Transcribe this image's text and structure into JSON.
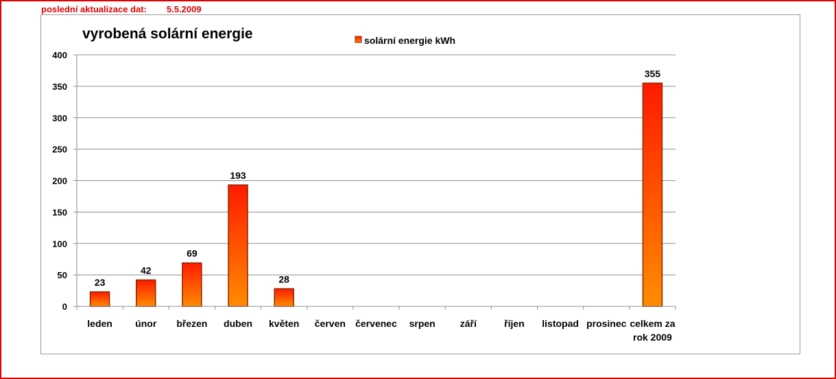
{
  "header": {
    "update_label": "poslední aktualizace dat:",
    "update_date": "5.5.2009"
  },
  "colors": {
    "accent": "#e00000",
    "bar_top": "#ff1a00",
    "bar_bottom": "#ff8c00",
    "bar_edge": "#8b2500"
  },
  "chart_data": {
    "type": "bar",
    "title": "vyrobená solární energie",
    "legend": [
      "solární energie kWh"
    ],
    "legend_position": "top",
    "categories": [
      "leden",
      "únor",
      "březen",
      "duben",
      "květen",
      "červen",
      "červenec",
      "srpen",
      "září",
      "říjen",
      "listopad",
      "prosinec",
      "celkem za rok 2009"
    ],
    "series": [
      {
        "name": "solární energie kWh",
        "values": [
          23,
          42,
          69,
          193,
          28,
          null,
          null,
          null,
          null,
          null,
          null,
          null,
          355
        ]
      }
    ],
    "data_labels": [
      "23",
      "42",
      "69",
      "193",
      "28",
      "",
      "",
      "",
      "",
      "",
      "",
      "",
      "355"
    ],
    "y_ticks": [
      "0",
      "50",
      "100",
      "150",
      "200",
      "250",
      "300",
      "350",
      "400"
    ],
    "ylim": [
      0,
      400
    ],
    "grid": true
  }
}
